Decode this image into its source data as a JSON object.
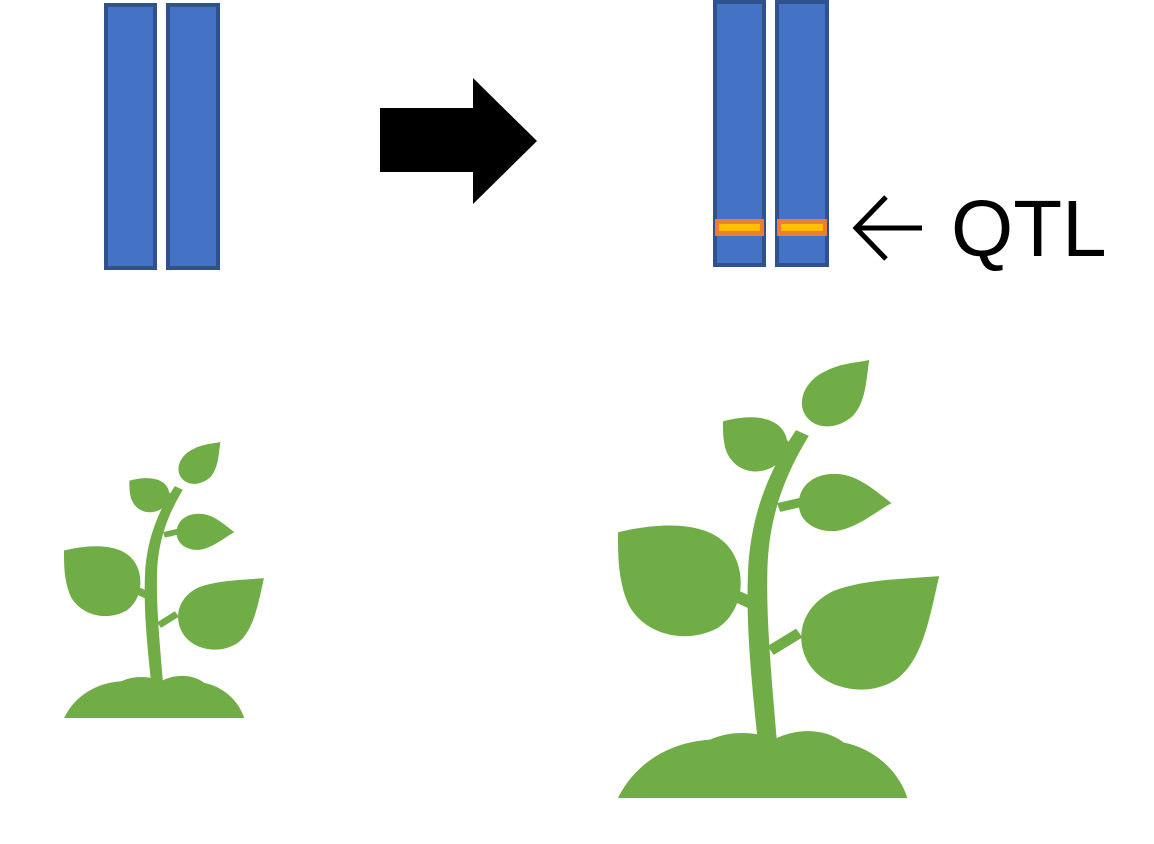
{
  "labels": {
    "qtl": "QTL"
  },
  "colors": {
    "chromosome_fill": "#4472C4",
    "chromosome_stroke": "#2F528F",
    "qtl_band_outer": "#ED7D31",
    "qtl_band_inner": "#FFC000",
    "plant": "#70AD47",
    "arrow": "#000000",
    "text": "#000000"
  },
  "icons": {
    "transition_arrow": "right-arrow-icon",
    "qtl_pointer": "left-arrow-icon",
    "plant": "seedling-icon"
  }
}
